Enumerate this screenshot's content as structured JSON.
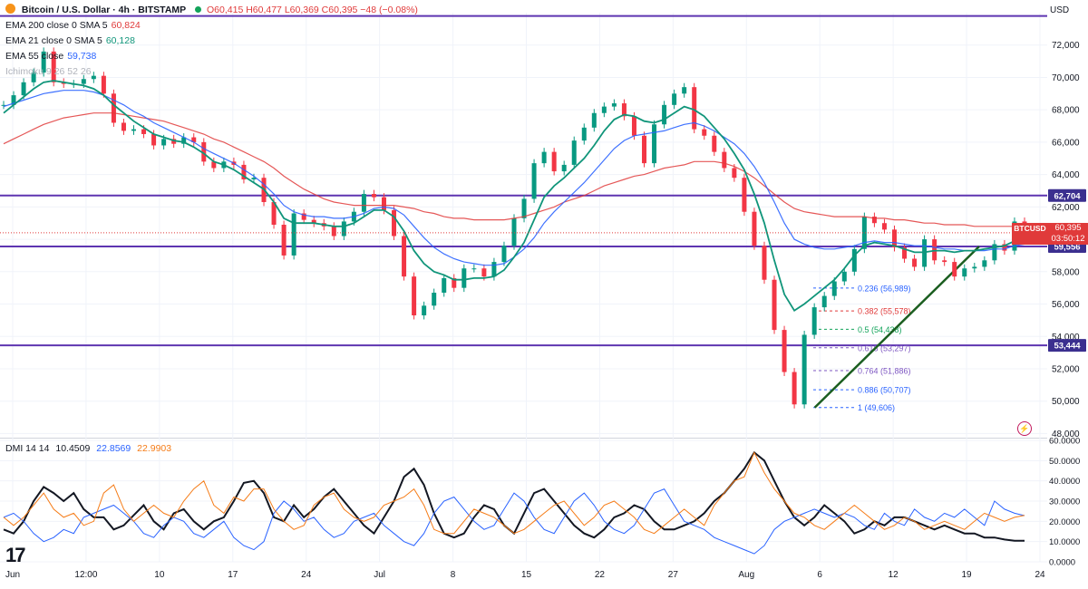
{
  "header": {
    "symbol": "Bitcoin / U.S. Dollar · 4h · BITSTAMP",
    "ohlc": "O60,415 H60,477 L60,369 C60,395 −48 (−0.08%)",
    "currency": "USD"
  },
  "indicators": [
    {
      "label": "EMA 200 close 0 SMA 5",
      "value": "60,824",
      "color": "#e03a3a"
    },
    {
      "label": "EMA 21 close 0 SMA 5",
      "value": "60,128",
      "color": "#10957a"
    },
    {
      "label": "EMA 55 close",
      "value": "59,738",
      "color": "#2962ff"
    },
    {
      "label": "Ichimoku 9 26 52 26",
      "value": "",
      "color": "#b0b3bb"
    }
  ],
  "dmi_legend": {
    "label": "DMI 14 14",
    "adx": "10.4509",
    "di_plus": "22.8569",
    "di_minus": "22.9903"
  },
  "price_badge": {
    "ticker": "BTCUSD",
    "price": "60,395",
    "countdown": "03:50:12"
  },
  "watermark": "17",
  "chart_data": [
    {
      "type": "line",
      "title": "Bitcoin / U.S. Dollar · 4h · BITSTAMP",
      "x_ticks": [
        "Jun",
        "12:00",
        "10",
        "17",
        "24",
        "Jul",
        "8",
        "15",
        "22",
        "27",
        "Aug",
        "6",
        "12",
        "19",
        "24"
      ],
      "ylim": [
        47800,
        74000
      ],
      "y_ticks": [
        "48,000",
        "50,000",
        "52,000",
        "54,000",
        "56,000",
        "58,000",
        "60,000",
        "62,000",
        "64,000",
        "66,000",
        "68,000",
        "70,000",
        "72,000"
      ],
      "horizontal_levels": [
        {
          "label": "62,704",
          "value": 62704
        },
        {
          "label": "59,556",
          "value": 59556
        },
        {
          "label": "53,444",
          "value": 53444
        },
        {
          "label": "",
          "value": 73800
        }
      ],
      "fibonacci": [
        {
          "label": "0.236 (56,989)",
          "value": 56989,
          "color": "#2962ff"
        },
        {
          "label": "0.382 (55,578)",
          "value": 55578,
          "color": "#e03a3a"
        },
        {
          "label": "0.5 (54,438)",
          "value": 54438,
          "color": "#12a35a"
        },
        {
          "label": "0.618 (53,297)",
          "value": 53297,
          "color": "#7e57c2"
        },
        {
          "label": "0.764 (51,886)",
          "value": 51886,
          "color": "#7e57c2"
        },
        {
          "label": "0.886 (50,707)",
          "value": 50707,
          "color": "#2962ff"
        },
        {
          "label": "1 (49,606)",
          "value": 49606,
          "color": "#2962ff"
        }
      ],
      "trendline": {
        "from": [
          0.778,
          49606
        ],
        "to": [
          0.935,
          59556
        ]
      },
      "close": [
        68300,
        68900,
        69700,
        70300,
        71600,
        69700,
        69600,
        69600,
        69900,
        70100,
        69000,
        67200,
        66700,
        66800,
        66500,
        65800,
        66200,
        65900,
        66300,
        66000,
        64800,
        64400,
        64800,
        64600,
        63700,
        63800,
        62300,
        60900,
        59000,
        61600,
        61200,
        61000,
        60800,
        60200,
        61100,
        61700,
        62800,
        62600,
        61800,
        60200,
        57700,
        55300,
        55900,
        56700,
        57600,
        57000,
        58200,
        58200,
        57700,
        58600,
        59600,
        61300,
        62500,
        64700,
        65400,
        64200,
        64600,
        66100,
        66900,
        67800,
        68200,
        68400,
        67600,
        66400,
        64700,
        67100,
        68300,
        69000,
        69400,
        66800,
        66400,
        65400,
        64400,
        63800,
        61700,
        59600,
        57500,
        54400,
        51800,
        49800,
        54100,
        55800,
        56500,
        57400,
        58000,
        59400,
        61400,
        61000,
        60600,
        59500,
        58800,
        58300,
        60000,
        58700,
        58600,
        57700,
        58200,
        58300,
        58700,
        59700,
        59300,
        61100,
        60400
      ],
      "ema21": [
        67800,
        68300,
        68800,
        69300,
        69700,
        69800,
        69700,
        69600,
        69500,
        69300,
        68900,
        68300,
        67800,
        67300,
        66900,
        66500,
        66300,
        66100,
        66000,
        65700,
        65300,
        64800,
        64600,
        64300,
        63900,
        63500,
        63100,
        62300,
        61300,
        61000,
        61000,
        61000,
        60900,
        60800,
        60800,
        61000,
        61400,
        61800,
        61800,
        61400,
        60500,
        59300,
        58500,
        58000,
        57800,
        57500,
        57500,
        57600,
        57600,
        57700,
        58100,
        58900,
        59800,
        61200,
        62600,
        63300,
        63800,
        64400,
        65000,
        65800,
        66700,
        67400,
        67700,
        67600,
        67300,
        67200,
        67400,
        67800,
        68200,
        68000,
        67600,
        66900,
        66200,
        65300,
        64300,
        62800,
        61000,
        58700,
        56600,
        55600,
        56000,
        56500,
        57000,
        57500,
        58200,
        59000,
        59600,
        59800,
        59700,
        59600,
        59400,
        59200,
        59200,
        59300,
        59300,
        59200,
        59300,
        59300,
        59400,
        59500,
        59600,
        59900,
        60100
      ],
      "ema55": [
        68200,
        68400,
        68600,
        68800,
        69000,
        69100,
        69200,
        69200,
        69200,
        69100,
        68900,
        68600,
        68300,
        67900,
        67600,
        67200,
        66900,
        66600,
        66300,
        66000,
        65600,
        65300,
        65000,
        64700,
        64300,
        63900,
        63400,
        62800,
        62100,
        61700,
        61500,
        61400,
        61400,
        61300,
        61300,
        61400,
        61600,
        61900,
        62000,
        61900,
        61500,
        60800,
        60100,
        59500,
        59100,
        58800,
        58600,
        58500,
        58400,
        58400,
        58500,
        58900,
        59400,
        60100,
        61000,
        61700,
        62300,
        62900,
        63500,
        64200,
        64900,
        65600,
        66100,
        66400,
        66500,
        66600,
        66700,
        66900,
        67100,
        67200,
        67000,
        66700,
        66300,
        65900,
        65300,
        64500,
        63500,
        62300,
        61000,
        60000,
        59700,
        59500,
        59400,
        59400,
        59500,
        59600,
        59800,
        59900,
        59800,
        59800,
        59700,
        59600,
        59600,
        59500,
        59400,
        59400,
        59300,
        59300,
        59300,
        59400,
        59400,
        59600,
        59700
      ],
      "ema200": [
        65900,
        66200,
        66500,
        66800,
        67100,
        67300,
        67500,
        67600,
        67700,
        67800,
        67800,
        67800,
        67700,
        67600,
        67500,
        67400,
        67300,
        67100,
        66900,
        66700,
        66500,
        66200,
        66000,
        65700,
        65400,
        65100,
        64800,
        64400,
        63900,
        63500,
        63100,
        62800,
        62500,
        62300,
        62200,
        62100,
        62100,
        62100,
        62100,
        62100,
        62000,
        61900,
        61700,
        61600,
        61400,
        61300,
        61300,
        61200,
        61200,
        61200,
        61200,
        61300,
        61400,
        61600,
        61800,
        62000,
        62300,
        62500,
        62700,
        63000,
        63300,
        63500,
        63700,
        63900,
        64000,
        64200,
        64400,
        64500,
        64600,
        64800,
        64800,
        64800,
        64700,
        64500,
        64200,
        63800,
        63300,
        62800,
        62300,
        61900,
        61700,
        61600,
        61500,
        61400,
        61400,
        61400,
        61400,
        61300,
        61300,
        61200,
        61200,
        61100,
        61000,
        61000,
        60900,
        60900,
        60900,
        60800,
        60800,
        60800,
        60800,
        60800,
        60800
      ]
    },
    {
      "type": "line",
      "title": "DMI 14 14",
      "ylim": [
        0,
        60
      ],
      "y_ticks": [
        "0.0000",
        "10.0000",
        "20.0000",
        "30.0000",
        "40.0000",
        "50.0000",
        "60.0000"
      ],
      "series": [
        {
          "name": "ADX",
          "color": "#131722",
          "values": [
            16,
            14,
            20,
            30,
            37,
            34,
            30,
            34,
            26,
            22,
            22,
            16,
            18,
            23,
            28,
            20,
            16,
            24,
            26,
            20,
            16,
            20,
            22,
            30,
            39,
            40,
            34,
            22,
            20,
            28,
            22,
            26,
            32,
            36,
            30,
            24,
            18,
            14,
            22,
            30,
            42,
            46,
            38,
            24,
            14,
            12,
            14,
            22,
            28,
            26,
            18,
            14,
            24,
            34,
            36,
            30,
            24,
            18,
            14,
            12,
            16,
            22,
            24,
            28,
            26,
            20,
            16,
            16,
            18,
            20,
            24,
            30,
            34,
            40,
            46,
            54,
            50,
            40,
            30,
            22,
            18,
            22,
            28,
            24,
            20,
            14,
            16,
            20,
            18,
            22,
            22,
            20,
            18,
            16,
            18,
            16,
            14,
            14,
            12,
            12,
            11,
            10.4509,
            10.4509
          ]
        },
        {
          "name": "+DI",
          "color": "#2962ff",
          "values": [
            22,
            24,
            20,
            14,
            10,
            12,
            16,
            14,
            22,
            24,
            26,
            28,
            24,
            20,
            14,
            12,
            18,
            22,
            20,
            14,
            12,
            16,
            20,
            12,
            8,
            6,
            10,
            24,
            30,
            26,
            20,
            22,
            16,
            12,
            14,
            20,
            22,
            24,
            18,
            14,
            10,
            8,
            14,
            24,
            30,
            32,
            26,
            20,
            16,
            18,
            26,
            34,
            30,
            22,
            16,
            14,
            22,
            30,
            34,
            28,
            20,
            16,
            14,
            18,
            26,
            34,
            36,
            28,
            20,
            18,
            16,
            12,
            10,
            8,
            6,
            4,
            8,
            16,
            20,
            22,
            24,
            26,
            24,
            22,
            24,
            22,
            18,
            16,
            24,
            20,
            18,
            26,
            22,
            20,
            24,
            22,
            26,
            22,
            18,
            30,
            26,
            24,
            22.8569
          ]
        },
        {
          "name": "−DI",
          "color": "#f57c18",
          "values": [
            22,
            18,
            22,
            28,
            34,
            26,
            22,
            24,
            18,
            20,
            34,
            38,
            26,
            20,
            24,
            28,
            24,
            22,
            30,
            36,
            40,
            28,
            24,
            32,
            30,
            36,
            36,
            26,
            20,
            16,
            18,
            28,
            32,
            34,
            26,
            22,
            20,
            22,
            28,
            30,
            32,
            36,
            28,
            16,
            14,
            14,
            20,
            26,
            24,
            22,
            18,
            14,
            16,
            20,
            24,
            28,
            30,
            24,
            18,
            22,
            28,
            30,
            26,
            22,
            16,
            14,
            18,
            22,
            26,
            22,
            18,
            28,
            34,
            40,
            42,
            54,
            44,
            36,
            30,
            24,
            22,
            18,
            16,
            20,
            24,
            28,
            24,
            20,
            16,
            18,
            22,
            20,
            16,
            18,
            20,
            18,
            16,
            20,
            24,
            22,
            20,
            22,
            22.9903
          ]
        }
      ]
    }
  ]
}
